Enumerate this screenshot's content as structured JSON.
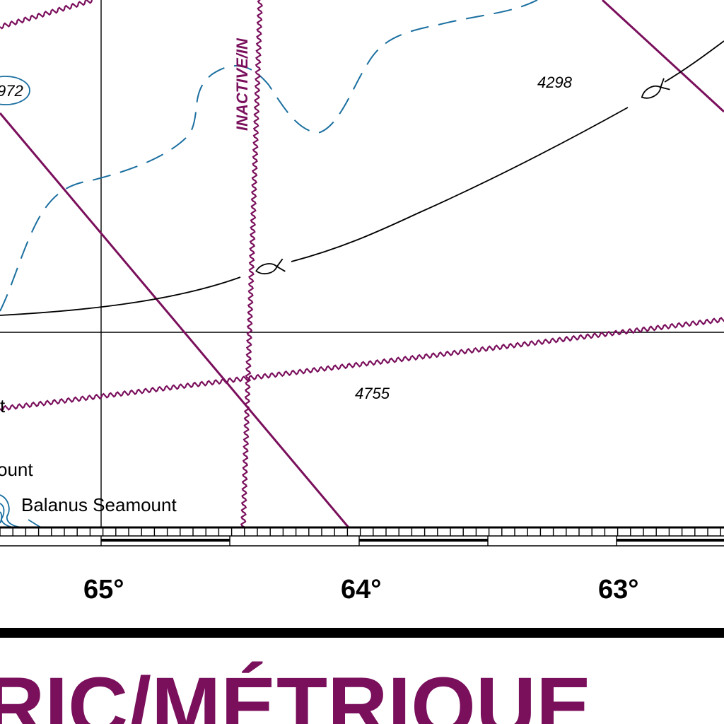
{
  "map": {
    "colors": {
      "boundary": "#7a0f5c",
      "contour": "#1a6fa0",
      "cable": "#000000",
      "grid": "#000000",
      "title": "#7a0f5c"
    },
    "icons": [
      "fish-icon",
      "fish-icon"
    ],
    "depth_soundings": {
      "top_left_partial": "972",
      "north": "4298",
      "south": "4755"
    },
    "zone_label": "INACTIVE/IN",
    "features": {
      "seamount_partial": "ount",
      "seamount_full": "Balanus Seamount",
      "left_edge_fragment": "t"
    },
    "longitudes": [
      "65°",
      "64°",
      "63°"
    ],
    "banner_title": "RIC/MÉTRIQUE"
  }
}
